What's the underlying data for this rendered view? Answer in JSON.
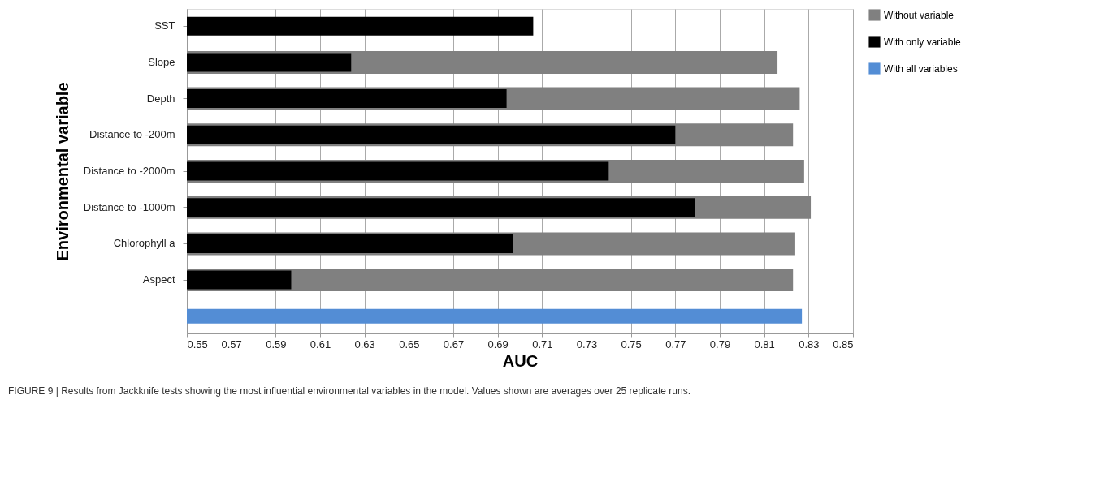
{
  "chart_data": {
    "type": "bar",
    "orientation": "horizontal",
    "xlabel": "AUC",
    "ylabel": "Environmental variable",
    "categories": [
      "SST",
      "Slope",
      "Depth",
      "Distance to -200m",
      "Distance to -2000m",
      "Distance to -1000m",
      "Chlorophyll a",
      "Aspect",
      null
    ],
    "series": [
      {
        "name": "Without variable",
        "color": "#808080",
        "values": [
          null,
          0.816,
          0.826,
          0.823,
          0.828,
          0.831,
          0.824,
          0.823,
          null
        ]
      },
      {
        "name": "With only variable",
        "color": "#000000",
        "values": [
          0.706,
          0.624,
          0.694,
          0.77,
          0.74,
          0.779,
          0.697,
          0.597,
          null
        ]
      },
      {
        "name": "With all variables",
        "color": "#538dd5",
        "values": [
          null,
          null,
          null,
          null,
          null,
          null,
          null,
          null,
          0.827
        ]
      }
    ],
    "xlim": [
      0.55,
      0.85
    ],
    "xticks": [
      0.55,
      0.57,
      0.59,
      0.61,
      0.63,
      0.65,
      0.67,
      0.69,
      0.71,
      0.73,
      0.75,
      0.77,
      0.79,
      0.81,
      0.83,
      0.85
    ],
    "grid": "x",
    "legend": "top right",
    "annotations": [
      "FIGURE 9 | Results from Jackknife tests showing the most influential environmental variables in the model. Values shown are averages over 25 replicate runs."
    ]
  }
}
